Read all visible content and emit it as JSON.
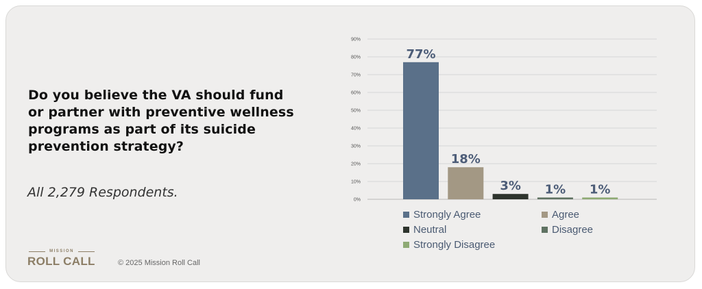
{
  "question": "Do you believe the VA should fund or partner with preventive wellness programs as part of its suicide prevention strategy?",
  "respondents": "All 2,279 Respondents.",
  "logo": {
    "top": "MISSION",
    "main": "ROLL CALL"
  },
  "copyright": "© 2025 Mission Roll Call",
  "chart_data": {
    "type": "bar",
    "title": "",
    "xlabel": "",
    "ylabel": "",
    "ylim": [
      0,
      90
    ],
    "yticks": [
      "0%",
      "10%",
      "20%",
      "30%",
      "40%",
      "50%",
      "60%",
      "70%",
      "80%",
      "90%"
    ],
    "grid": true,
    "legend_position": "bottom",
    "categories": [
      "Strongly Agree",
      "Agree",
      "Neutral",
      "Disagree",
      "Strongly Disagree"
    ],
    "values": [
      77,
      18,
      3,
      1,
      1
    ],
    "data_labels": [
      "77%",
      "18%",
      "3%",
      "1%",
      "1%"
    ],
    "colors": [
      "#5a7089",
      "#a39884",
      "#2e342d",
      "#5f7262",
      "#8eaa74"
    ]
  }
}
